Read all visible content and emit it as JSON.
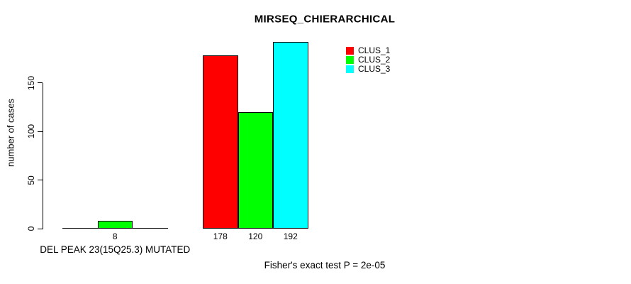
{
  "page": {
    "background_color": "#ffffff",
    "axis_color": "#000000",
    "text_color": "#000000"
  },
  "chart_data": {
    "type": "bar",
    "title": "MIRSEQ_CHIERARCHICAL",
    "xlabel": "",
    "ylabel": "number of cases",
    "categories": [
      "DEL PEAK 23(15Q25.3) MUTATED",
      ""
    ],
    "series": [
      {
        "name": "CLUS_1",
        "color": "#ff0000",
        "values": [
          0,
          178
        ]
      },
      {
        "name": "CLUS_2",
        "color": "#00ff00",
        "values": [
          8,
          120
        ]
      },
      {
        "name": "CLUS_3",
        "color": "#00ffff",
        "values": [
          0,
          192
        ]
      }
    ],
    "bar_labels": [
      [
        "",
        "8",
        ""
      ],
      [
        "178",
        "120",
        "192"
      ]
    ],
    "yticks": [
      0,
      50,
      100,
      150
    ],
    "ylim": [
      0,
      195
    ],
    "grid": false,
    "legend_position": "top-right",
    "annotation": "Fisher's exact test P = 2e-05"
  }
}
